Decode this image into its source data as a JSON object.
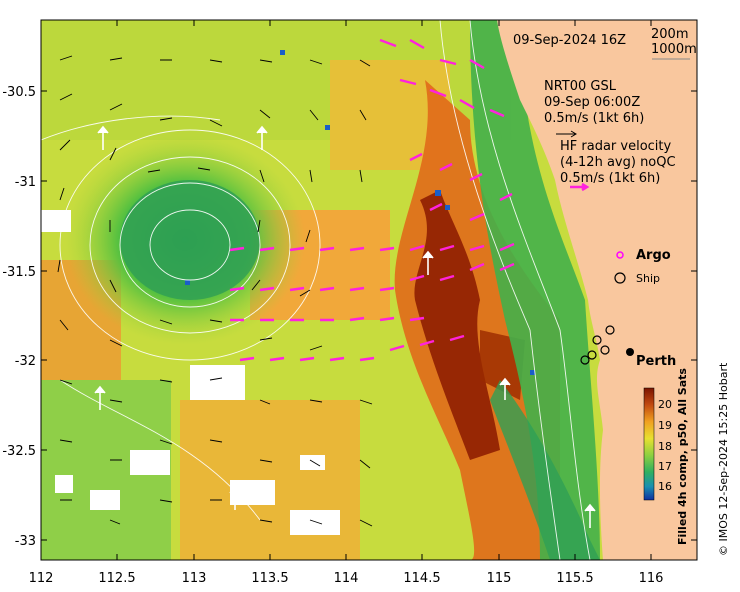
{
  "map": {
    "datetime": "09-Sep-2024 16Z",
    "contours_legend": {
      "line1": "200m",
      "line2": "1000m"
    },
    "model": {
      "name": "NRT00 GSL",
      "time": "09-Sep 06:00Z",
      "scale": "0.5m/s (1kt 6h)"
    },
    "radar": {
      "line1": "HF radar velocity",
      "line2": "(4-12h avg) noQC",
      "scale": "0.5m/s (1kt 6h)"
    },
    "legend": {
      "argo": "Argo",
      "ship": "Ship"
    },
    "place": "Perth",
    "colorbar": {
      "title": "Filled 4h comp, p50, All Sats",
      "ticks": [
        "20",
        "19",
        "18",
        "17",
        "16"
      ]
    },
    "credit": "© IMOS 12-Sep-2024 15:25 Hobart",
    "x_ticks": [
      "112",
      "112.5",
      "113",
      "113.5",
      "114",
      "114.5",
      "115",
      "115.5",
      "116"
    ],
    "y_ticks": [
      "-30.5",
      "-31",
      "-31.5",
      "-32",
      "-32.5",
      "-33"
    ],
    "colors": {
      "land": "#f9c79e",
      "argo": "#ff00ff",
      "radar_arrow": "#ff22dd",
      "warm": "#8b1a00",
      "cool": "#1f8f3a"
    }
  }
}
